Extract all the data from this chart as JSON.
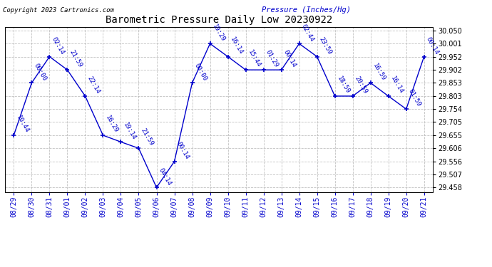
{
  "title": "Barometric Pressure Daily Low 20230922",
  "ylabel": "Pressure (Inches/Hg)",
  "copyright": "Copyright 2023 Cartronics.com",
  "line_color": "#0000cc",
  "bg_color": "#ffffff",
  "grid_color": "#bbbbbb",
  "dates": [
    "08/29",
    "08/30",
    "08/31",
    "09/01",
    "09/02",
    "09/03",
    "09/04",
    "09/05",
    "09/06",
    "09/07",
    "09/08",
    "09/09",
    "09/10",
    "09/11",
    "09/12",
    "09/13",
    "09/14",
    "09/15",
    "09/16",
    "09/17",
    "09/18",
    "09/19",
    "09/20",
    "09/21"
  ],
  "values": [
    29.656,
    29.853,
    29.952,
    29.902,
    29.803,
    29.655,
    29.63,
    29.606,
    29.458,
    29.556,
    29.853,
    30.001,
    29.952,
    29.902,
    29.902,
    29.902,
    30.001,
    29.952,
    29.803,
    29.803,
    29.853,
    29.803,
    29.754,
    29.952
  ],
  "time_labels": [
    "10:44",
    "00:00",
    "02:14",
    "21:59",
    "22:14",
    "16:29",
    "19:14",
    "21:59",
    "04:14",
    "00:14",
    "00:00",
    "19:29",
    "16:14",
    "15:44",
    "01:29",
    "00:14",
    "02:44",
    "23:59",
    "18:59",
    "20:59",
    "16:59",
    "16:14",
    "01:59",
    "00:14"
  ],
  "ylim": [
    29.44,
    30.065
  ],
  "yticks": [
    29.458,
    29.507,
    29.556,
    29.606,
    29.655,
    29.705,
    29.754,
    29.803,
    29.853,
    29.902,
    29.952,
    30.001,
    30.05
  ],
  "label_rotation": -60,
  "label_fontsize": 6.5,
  "title_fontsize": 10,
  "xlabel_fontsize": 7,
  "ylabel_fontsize": 7.5,
  "copyright_fontsize": 6.5,
  "ytick_fontsize": 7
}
